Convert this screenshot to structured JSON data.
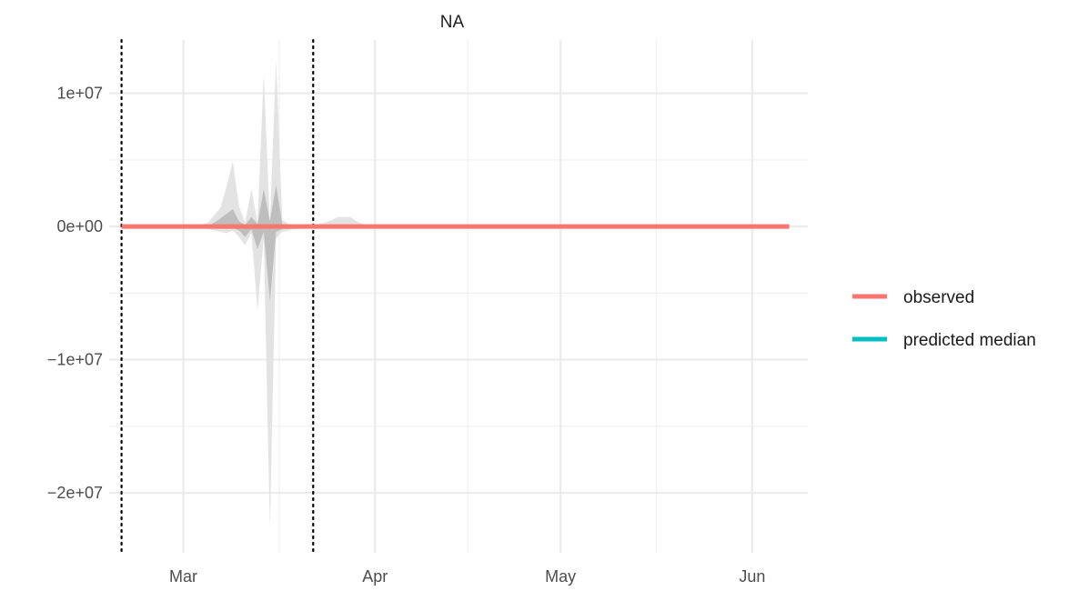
{
  "chart_data": {
    "type": "line",
    "title": "NA",
    "xlabel": "",
    "ylabel": "",
    "x_domain": [
      "2020-02-18",
      "2020-06-10"
    ],
    "ylim": [
      -24500000,
      14000000
    ],
    "x_ticks": [
      {
        "date": "2020-03-01",
        "label": "Mar"
      },
      {
        "date": "2020-04-01",
        "label": "Apr"
      },
      {
        "date": "2020-05-01",
        "label": "May"
      },
      {
        "date": "2020-06-01",
        "label": "Jun"
      }
    ],
    "y_ticks": [
      {
        "value": 10000000,
        "label": "1e+07"
      },
      {
        "value": 0,
        "label": "0e+00"
      },
      {
        "value": -10000000,
        "label": "−1e+07"
      },
      {
        "value": -20000000,
        "label": "−2e+07"
      }
    ],
    "grid": true,
    "legend_position": "right",
    "vlines": [
      "2020-02-20",
      "2020-03-22"
    ],
    "series": [
      {
        "name": "observed",
        "color": "#F8766D",
        "x": [
          "2020-02-20",
          "2020-06-07"
        ],
        "y": [
          0,
          0
        ]
      },
      {
        "name": "predicted median",
        "color": "#00BFC4",
        "x": [],
        "y": []
      }
    ],
    "bands": [
      {
        "kind": "outer",
        "color": "#e3e3e3",
        "x": [
          "2020-03-03",
          "2020-03-05",
          "2020-03-07",
          "2020-03-08",
          "2020-03-09",
          "2020-03-10",
          "2020-03-11",
          "2020-03-12",
          "2020-03-13",
          "2020-03-14",
          "2020-03-15",
          "2020-03-16",
          "2020-03-17",
          "2020-03-18",
          "2020-03-19",
          "2020-03-21",
          "2020-03-22",
          "2020-03-24",
          "2020-03-26",
          "2020-03-28",
          "2020-03-29",
          "2020-03-31"
        ],
        "upper": [
          0,
          300000,
          1400000,
          3000000,
          4900000,
          1500000,
          300000,
          2800000,
          300000,
          11500000,
          300000,
          12500000,
          500000,
          200000,
          0,
          50000,
          100000,
          300000,
          700000,
          700000,
          400000,
          0
        ],
        "lower": [
          0,
          -200000,
          -400000,
          -500000,
          -300000,
          -800000,
          -1400000,
          -500000,
          -6300000,
          -900000,
          -22700000,
          -900000,
          -400000,
          -300000,
          -200000,
          -100000,
          -100000,
          -50000,
          -50000,
          -50000,
          -50000,
          0
        ]
      },
      {
        "kind": "inner",
        "color": "#bebebe",
        "x": [
          "2020-03-05",
          "2020-03-07",
          "2020-03-09",
          "2020-03-10",
          "2020-03-11",
          "2020-03-12",
          "2020-03-13",
          "2020-03-14",
          "2020-03-15",
          "2020-03-16",
          "2020-03-17",
          "2020-03-18"
        ],
        "upper": [
          0,
          600000,
          1300000,
          400000,
          100000,
          700000,
          200000,
          2800000,
          400000,
          3100000,
          200000,
          0
        ],
        "lower": [
          0,
          -100000,
          -100000,
          -300000,
          -800000,
          -200000,
          -1700000,
          -400000,
          -5600000,
          -400000,
          -200000,
          0
        ]
      }
    ]
  }
}
